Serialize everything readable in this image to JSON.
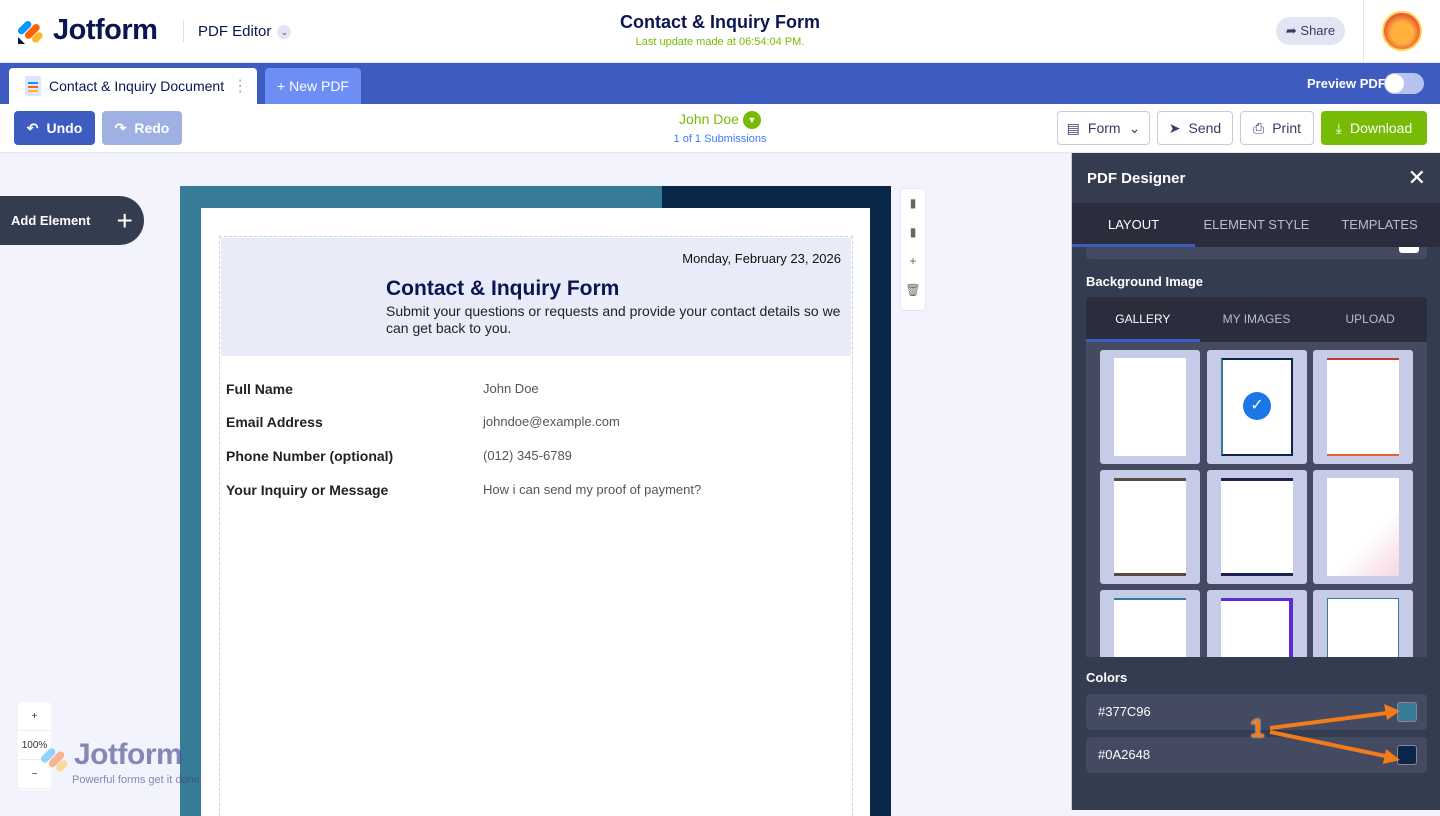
{
  "header": {
    "brand": "Jotform",
    "product": "PDF Editor",
    "title": "Contact & Inquiry Form",
    "last_update": "Last update made at 06:54:04 PM.",
    "share": "Share"
  },
  "tabs": {
    "document": "Contact & Inquiry Document",
    "new_pdf": "+ New PDF",
    "preview": "Preview PDF",
    "preview_on": false
  },
  "toolbar": {
    "undo": "Undo",
    "redo": "Redo",
    "user": "John Doe",
    "submissions": "1 of 1 Submissions",
    "form": "Form",
    "send": "Send",
    "print": "Print",
    "download": "Download"
  },
  "canvas": {
    "add_element": "Add Element",
    "zoom": "100%",
    "watermark_brand": "Jotform",
    "watermark_tagline": "Powerful forms get it done"
  },
  "document": {
    "date": "Monday, February 23, 2026",
    "title": "Contact & Inquiry Form",
    "description": "Submit your questions or requests and provide your contact details so we can get back to you.",
    "fields": [
      {
        "label": "Full Name",
        "value": "John Doe"
      },
      {
        "label": "Email Address",
        "value": "johndoe@example.com"
      },
      {
        "label": "Phone Number (optional)",
        "value": "(012) 345-6789"
      },
      {
        "label": "Your Inquiry or Message",
        "value": "How i can send my proof of payment?"
      }
    ]
  },
  "panel": {
    "title": "PDF Designer",
    "tabs": [
      "LAYOUT",
      "ELEMENT STYLE",
      "TEMPLATES"
    ],
    "active_tab": "LAYOUT",
    "background_image": "Background Image",
    "gallery_tabs": [
      "GALLERY",
      "MY IMAGES",
      "UPLOAD"
    ],
    "selected_gallery_index": 1,
    "colors_label": "Colors",
    "colors": [
      {
        "hex": "#377C96",
        "swatch": "#377c96"
      },
      {
        "hex": "#0A2648",
        "swatch": "#0a2648"
      }
    ]
  },
  "annotation": "1"
}
